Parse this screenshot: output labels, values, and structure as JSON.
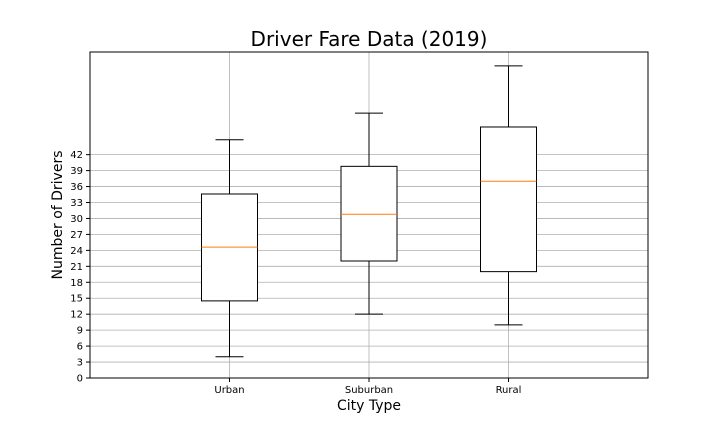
{
  "chart_data": {
    "type": "box",
    "title": "Driver Fare Data (2019)",
    "xlabel": "City Type",
    "ylabel": "Number of Drivers",
    "categories": [
      "Urban",
      "Suburban",
      "Rural"
    ],
    "boxes": [
      {
        "category": "Urban",
        "whisker_low": 4,
        "q1": 14.5,
        "median": 24.6,
        "q3": 34.6,
        "whisker_high": 44.8
      },
      {
        "category": "Suburban",
        "whisker_low": 12,
        "q1": 22,
        "median": 30.8,
        "q3": 39.8,
        "whisker_high": 49.8
      },
      {
        "category": "Rural",
        "whisker_low": 10,
        "q1": 20,
        "median": 37,
        "q3": 47.2,
        "whisker_high": 58.7
      }
    ],
    "yticks": [
      0,
      3,
      6,
      9,
      12,
      15,
      18,
      21,
      24,
      27,
      30,
      33,
      36,
      39,
      42
    ],
    "ylim": [
      0,
      61.3
    ],
    "grid": true,
    "colors": {
      "box": "#000000",
      "median": "#ff7f0e",
      "grid": "#b0b0b0"
    }
  }
}
